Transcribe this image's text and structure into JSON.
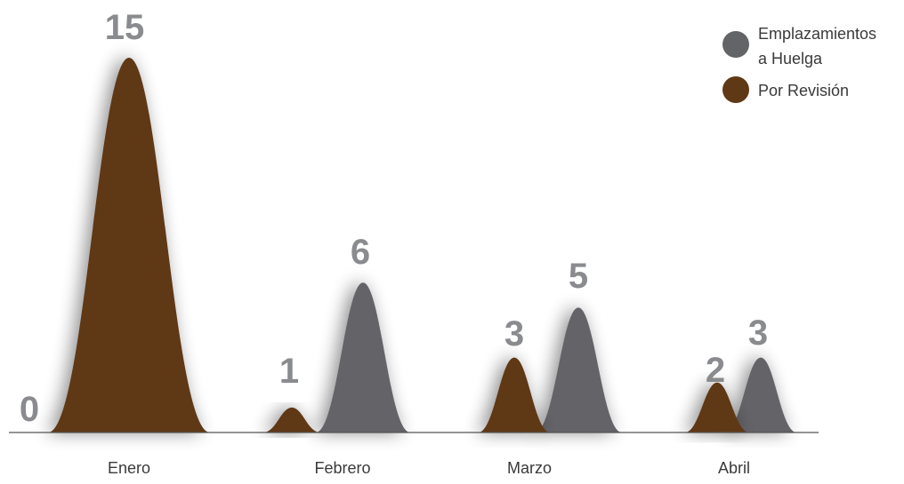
{
  "chart_data": {
    "type": "area",
    "categories": [
      "Enero",
      "Febrero",
      "Marzo",
      "Abril"
    ],
    "series": [
      {
        "name": "Emplazamientos a Huelga",
        "legend_lines": [
          "Emplazamientos",
          "a Huelga"
        ],
        "color": "#636468",
        "values": [
          0,
          6,
          5,
          3
        ],
        "labels": [
          "0",
          "6",
          "5",
          "3"
        ]
      },
      {
        "name": "Por Revisión",
        "legend_lines": [
          "Por Revisión"
        ],
        "color": "#5f3815",
        "values": [
          15,
          1,
          3,
          2
        ],
        "labels": [
          "15",
          "1",
          "3",
          "2"
        ]
      }
    ],
    "ylim": [
      0,
      15
    ],
    "label_color": "#8a8b8e",
    "axis_color": "#555555",
    "legend_position": "top-right"
  }
}
